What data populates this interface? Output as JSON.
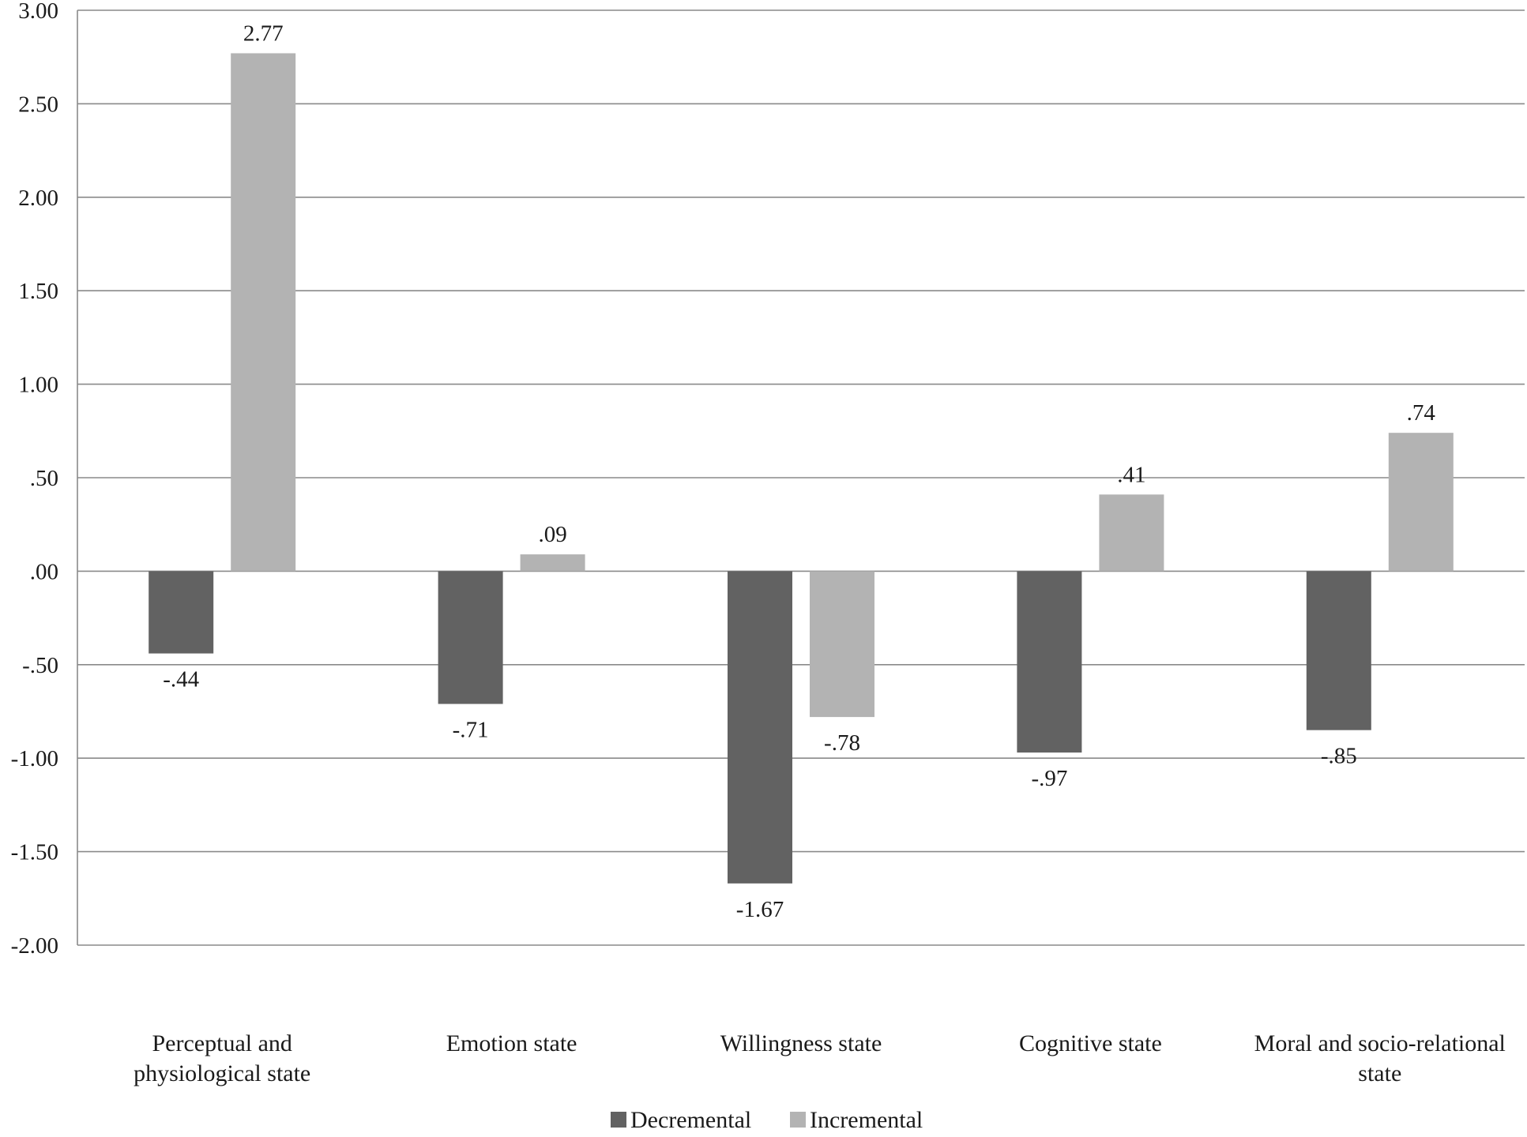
{
  "chart_data": {
    "type": "bar",
    "title": "",
    "xlabel": "",
    "ylabel": "",
    "ylim": [
      -2.0,
      3.0
    ],
    "y_ticks": [
      {
        "value": 3.0,
        "label": "3.00"
      },
      {
        "value": 2.5,
        "label": "2.50"
      },
      {
        "value": 2.0,
        "label": "2.00"
      },
      {
        "value": 1.5,
        "label": "1.50"
      },
      {
        "value": 1.0,
        "label": "1.00"
      },
      {
        "value": 0.5,
        "label": ".50"
      },
      {
        "value": 0.0,
        "label": ".00"
      },
      {
        "value": -0.5,
        "label": "-.50"
      },
      {
        "value": -1.0,
        "label": "-1.00"
      },
      {
        "value": -1.5,
        "label": "-1.50"
      },
      {
        "value": -2.0,
        "label": "-2.00"
      }
    ],
    "grid": true,
    "legend_position": "bottom",
    "categories": [
      {
        "lines": [
          "Perceptual and",
          "physiological state"
        ]
      },
      {
        "lines": [
          "Emotion state"
        ]
      },
      {
        "lines": [
          "Willingness state"
        ]
      },
      {
        "lines": [
          "Cognitive state"
        ]
      },
      {
        "lines": [
          "Moral and socio-relational",
          "state"
        ]
      }
    ],
    "series": [
      {
        "name": "Decremental",
        "color": "#626262",
        "values": [
          -0.44,
          -0.71,
          -1.67,
          -0.97,
          -0.85
        ],
        "labels": [
          "-.44",
          "-.71",
          "-1.67",
          "-.97",
          "-.85"
        ]
      },
      {
        "name": "Incremental",
        "color": "#b3b3b3",
        "values": [
          2.77,
          0.09,
          -0.78,
          0.41,
          0.74
        ],
        "labels": [
          "2.77",
          ".09",
          "-.78",
          ".41",
          ".74"
        ]
      }
    ]
  }
}
